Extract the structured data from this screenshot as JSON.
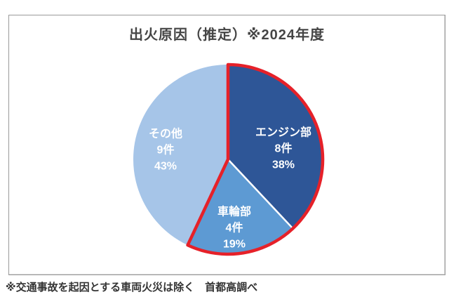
{
  "title": "出火原因（推定）※2024年度",
  "footnote": "※交通事故を起因とする車両火災は除く　首都高調べ",
  "chart_data": {
    "type": "pie",
    "title": "出火原因（推定）※2024年度",
    "start_angle_deg": 0,
    "direction": "clockwise",
    "total_percent": 100,
    "slices": [
      {
        "label": "エンジン部",
        "count": 8,
        "count_label": "8件",
        "percent": 38,
        "percent_label": "38%",
        "color": "#2E5697",
        "highlighted": true
      },
      {
        "label": "車輪部",
        "count": 4,
        "count_label": "4件",
        "percent": 19,
        "percent_label": "19%",
        "color": "#5D9AD3",
        "highlighted": true
      },
      {
        "label": "その他",
        "count": 9,
        "count_label": "9件",
        "percent": 43,
        "percent_label": "43%",
        "color": "#A6C5E8",
        "highlighted": false
      }
    ],
    "highlight_outline_color": "#E62129",
    "separator_color": "#FFFFFF",
    "label_text_color": "#FFFFFF",
    "legend": "none",
    "notes": "エンジン部と車輪部のグループが赤い太枠で強調されている"
  }
}
